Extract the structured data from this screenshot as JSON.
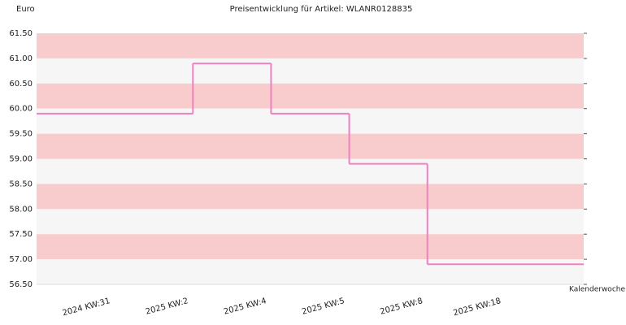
{
  "chart_data": {
    "type": "step-line",
    "title": "Preisentwicklung für Artikel: WLANR0128835",
    "y_label": "Euro",
    "x_label": "Kalenderwoche",
    "categories": [
      "2024 KW:31",
      "2025 KW:2",
      "2025 KW:4",
      "2025 KW:5",
      "2025 KW:8",
      "2025 KW:18"
    ],
    "series": [
      {
        "name": "WLANR0128835",
        "color": "#f080c0",
        "values": [
          59.9,
          59.9,
          60.9,
          59.9,
          58.9,
          56.9
        ]
      }
    ],
    "ylim": [
      56.5,
      61.5
    ],
    "yticks": [
      {
        "value": 56.5,
        "label": "56.50"
      },
      {
        "value": 57,
        "label": "57.00"
      },
      {
        "value": 57.5,
        "label": "57.50"
      },
      {
        "value": 58,
        "label": "58.00"
      },
      {
        "value": 58.5,
        "label": "58.50"
      },
      {
        "value": 59,
        "label": "59.00"
      },
      {
        "value": 59.5,
        "label": "59.50"
      },
      {
        "value": 60,
        "label": "60.00"
      },
      {
        "value": 60.5,
        "label": "60.50"
      },
      {
        "value": 61,
        "label": "61.00"
      },
      {
        "value": 61.5,
        "label": "61.50"
      }
    ],
    "band_colors": [
      "#f8cccc",
      "#f6f6f6"
    ]
  }
}
